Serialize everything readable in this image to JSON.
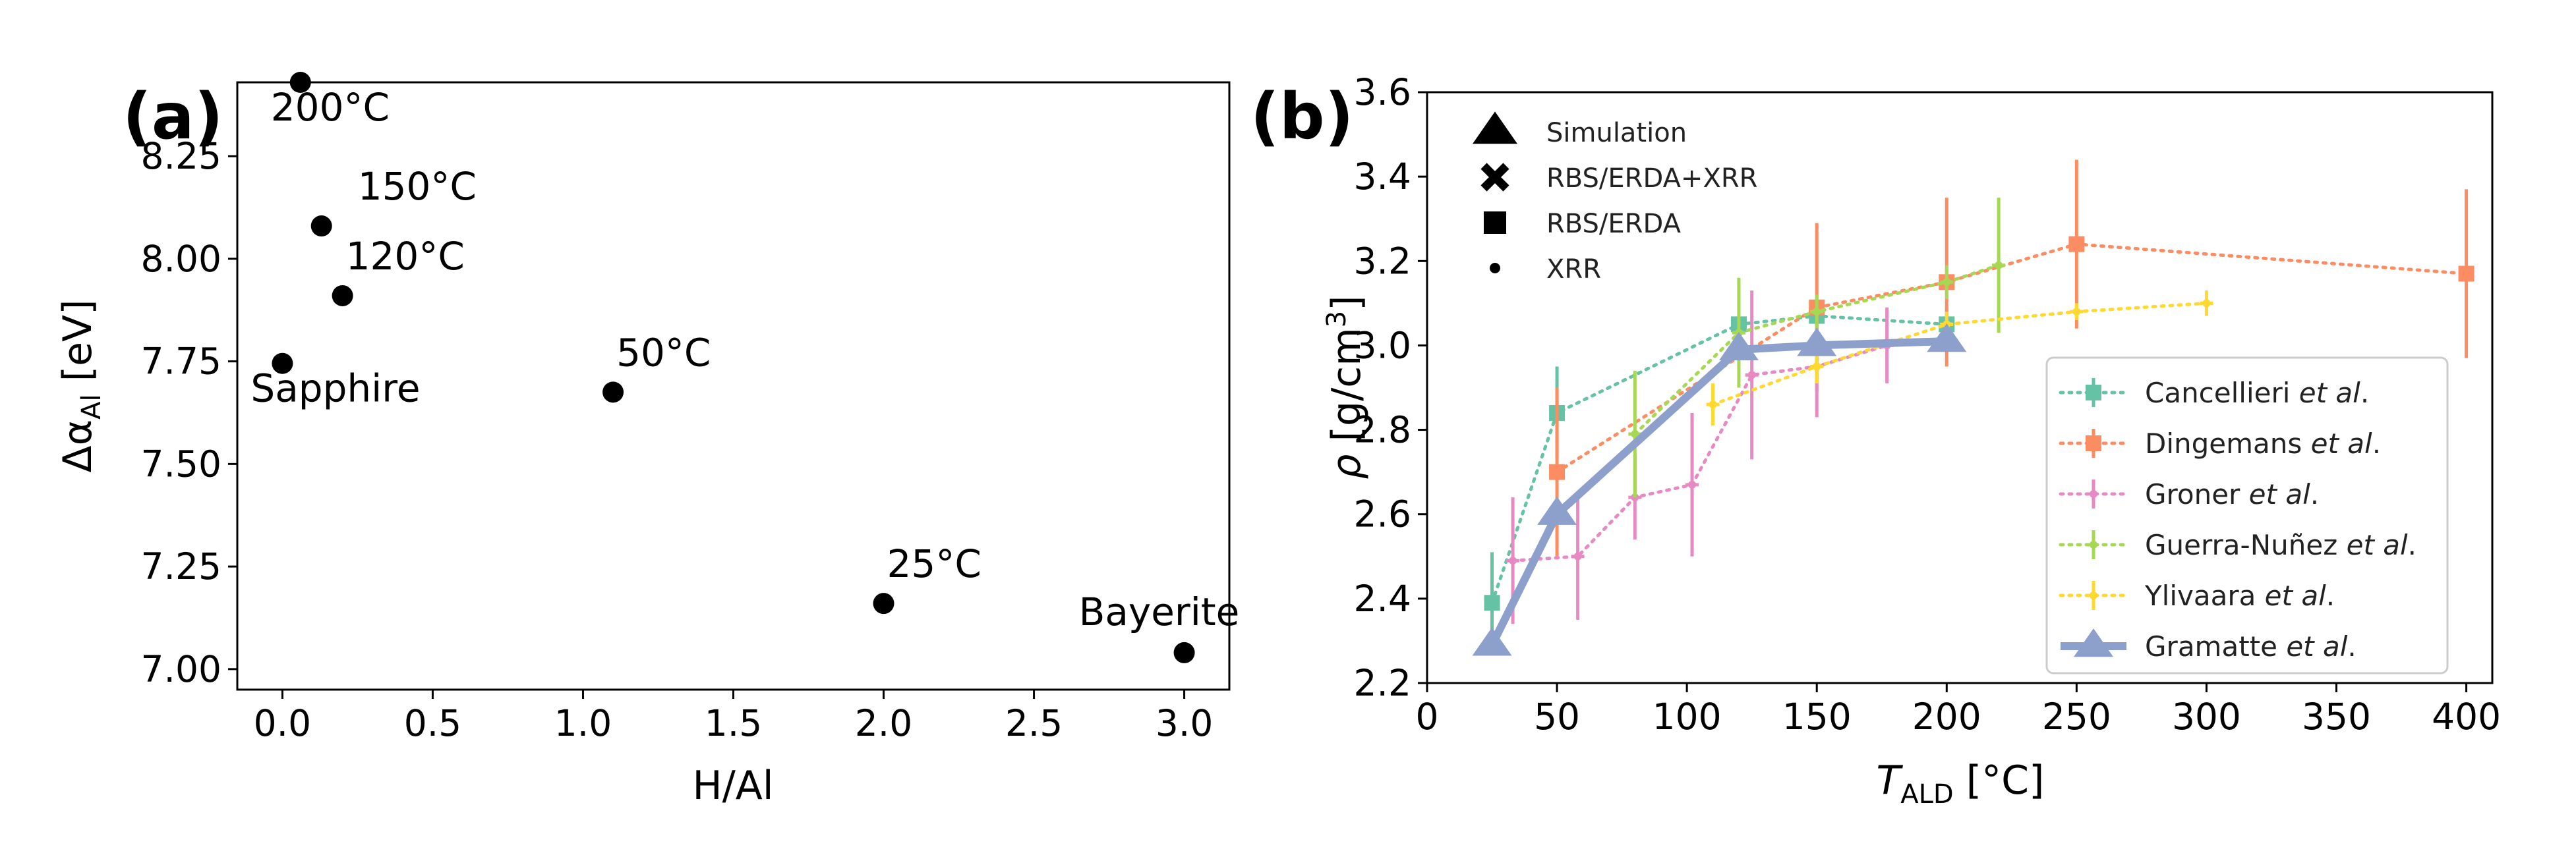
{
  "colors": {
    "Cancellieri": "#66c2a5",
    "Dingemans": "#fc8d62",
    "Groner": "#e78ac3",
    "Guerra": "#a6d854",
    "Ylivaara": "#ffd92f",
    "Gramatte": "#8da0cb"
  },
  "chart_data": [
    {
      "type": "scatter",
      "panel_label": "(a)",
      "xlabel": "H/Al",
      "ylabel": "Δα",
      "ylabel_sub": "Al",
      "ylabel_unit": " [eV]",
      "xlim": [
        -0.15,
        3.15
      ],
      "ylim": [
        6.95,
        8.43
      ],
      "xticks": [
        0.0,
        0.5,
        1.0,
        1.5,
        2.0,
        2.5,
        3.0
      ],
      "xtick_labels": [
        "0.0",
        "0.5",
        "1.0",
        "1.5",
        "2.0",
        "2.5",
        "3.0"
      ],
      "yticks": [
        7.0,
        7.25,
        7.5,
        7.75,
        8.0,
        8.25
      ],
      "ytick_labels": [
        "7.00",
        "7.25",
        "7.50",
        "7.75",
        "8.00",
        "8.25"
      ],
      "points": [
        {
          "x": 0.06,
          "y": 8.43,
          "label": "200°C",
          "label_color": "#000000"
        },
        {
          "x": 0.13,
          "y": 8.08,
          "label": "150°C",
          "label_color": "#000000"
        },
        {
          "x": 0.2,
          "y": 7.91,
          "label": "120°C",
          "label_color": "#000000"
        },
        {
          "x": 0.0,
          "y": 7.745,
          "label": "Sapphire",
          "label_color": "#ff0000"
        },
        {
          "x": 1.1,
          "y": 7.675,
          "label": "50°C",
          "label_color": "#000000"
        },
        {
          "x": 2.0,
          "y": 7.16,
          "label": "25°C",
          "label_color": "#000000"
        },
        {
          "x": 3.0,
          "y": 7.04,
          "label": "Bayerite",
          "label_color": "#0000ff"
        }
      ]
    },
    {
      "type": "line",
      "panel_label": "(b)",
      "xlabel_var": "T",
      "xlabel_sub": "ALD",
      "xlabel_unit": " [°C]",
      "ylabel_var": "ρ",
      "ylabel_unit": " [g/cm",
      "ylabel_sup": "3",
      "ylabel_close": "]",
      "xlim": [
        0,
        410
      ],
      "ylim": [
        2.2,
        3.6
      ],
      "xticks": [
        0,
        50,
        100,
        150,
        200,
        250,
        300,
        350,
        400
      ],
      "xtick_labels": [
        "0",
        "50",
        "100",
        "150",
        "200",
        "250",
        "300",
        "350",
        "400"
      ],
      "yticks": [
        2.2,
        2.4,
        2.6,
        2.8,
        3.0,
        3.2,
        3.4,
        3.6
      ],
      "ytick_labels": [
        "2.2",
        "2.4",
        "2.6",
        "2.8",
        "3.0",
        "3.2",
        "3.4",
        "3.6"
      ],
      "marker_legend": [
        {
          "marker": "triangle",
          "label": "Simulation"
        },
        {
          "marker": "cross",
          "label": "RBS/ERDA+XRR"
        },
        {
          "marker": "square",
          "label": "RBS/ERDA"
        },
        {
          "marker": "dot",
          "label": "XRR"
        }
      ],
      "series": [
        {
          "name": "Cancellieri",
          "suffix": " et al.",
          "color_key": "Cancellieri",
          "style": "dotted",
          "points": [
            {
              "x": 25,
              "y": 2.39,
              "err": 0.12,
              "m": "square"
            },
            {
              "x": 50,
              "y": 2.84,
              "err": 0.11,
              "m": "square"
            },
            {
              "x": 120,
              "y": 3.05,
              "err": 0.11,
              "m": "square"
            },
            {
              "x": 150,
              "y": 3.07,
              "err": 0.05,
              "m": "square"
            },
            {
              "x": 200,
              "y": 3.05,
              "err": 0.04,
              "m": "square"
            }
          ]
        },
        {
          "name": "Dingemans",
          "suffix": " et al.",
          "color_key": "Dingemans",
          "style": "dotted",
          "points": [
            {
              "x": 50,
              "y": 2.7,
              "err": 0.2,
              "m": "square"
            },
            {
              "x": 150,
              "y": 3.09,
              "err": 0.2,
              "m": "square"
            },
            {
              "x": 200,
              "y": 3.15,
              "err": 0.2,
              "m": "square"
            },
            {
              "x": 250,
              "y": 3.24,
              "err": 0.2,
              "m": "square"
            },
            {
              "x": 400,
              "y": 3.17,
              "err": 0.2,
              "m": "square"
            }
          ]
        },
        {
          "name": "Groner",
          "suffix": " et al.",
          "color_key": "Groner",
          "style": "dotted",
          "points": [
            {
              "x": 33,
              "y": 2.49,
              "err": 0.15,
              "m": "dot"
            },
            {
              "x": 58,
              "y": 2.5,
              "err": 0.15,
              "m": "dot"
            },
            {
              "x": 80,
              "y": 2.64,
              "err": 0.1,
              "m": "dot"
            },
            {
              "x": 102,
              "y": 2.67,
              "err": 0.17,
              "m": "dot"
            },
            {
              "x": 125,
              "y": 2.93,
              "err": 0.2,
              "m": "dot"
            },
            {
              "x": 150,
              "y": 2.95,
              "err": 0.12,
              "m": "dot"
            },
            {
              "x": 177,
              "y": 3.0,
              "err": 0.09,
              "m": "dot"
            }
          ]
        },
        {
          "name": "Guerra-Nuñez",
          "suffix": " et al.",
          "color_key": "Guerra",
          "style": "dotted",
          "points": [
            {
              "x": 80,
              "y": 2.79,
              "err": 0.15,
              "m": "dot"
            },
            {
              "x": 120,
              "y": 3.03,
              "err": 0.13,
              "m": "dot"
            },
            {
              "x": 150,
              "y": 3.08,
              "err": 0.04,
              "m": "dot"
            },
            {
              "x": 200,
              "y": 3.15,
              "err": 0.04,
              "m": "dot"
            },
            {
              "x": 220,
              "y": 3.19,
              "err": 0.16,
              "m": "dot"
            }
          ]
        },
        {
          "name": "Ylivaara",
          "suffix": " et al.",
          "color_key": "Ylivaara",
          "style": "dotted",
          "points": [
            {
              "x": 110,
              "y": 2.86,
              "err": 0.05,
              "m": "dot"
            },
            {
              "x": 150,
              "y": 2.95,
              "err": 0.04,
              "m": "dot"
            },
            {
              "x": 200,
              "y": 3.05,
              "err": 0.03,
              "m": "dot"
            },
            {
              "x": 250,
              "y": 3.08,
              "err": 0.02,
              "m": "dot"
            },
            {
              "x": 300,
              "y": 3.1,
              "err": 0.03,
              "m": "dot"
            }
          ]
        },
        {
          "name": "Gramatte",
          "suffix": " et al.",
          "color_key": "Gramatte",
          "style": "solid",
          "points": [
            {
              "x": 25,
              "y": 2.29,
              "err": 0,
              "m": "triangle"
            },
            {
              "x": 50,
              "y": 2.6,
              "err": 0,
              "m": "triangle"
            },
            {
              "x": 120,
              "y": 2.99,
              "err": 0,
              "m": "triangle"
            },
            {
              "x": 150,
              "y": 3.0,
              "err": 0,
              "m": "triangle"
            },
            {
              "x": 200,
              "y": 3.01,
              "err": 0,
              "m": "triangle"
            }
          ]
        }
      ]
    }
  ]
}
